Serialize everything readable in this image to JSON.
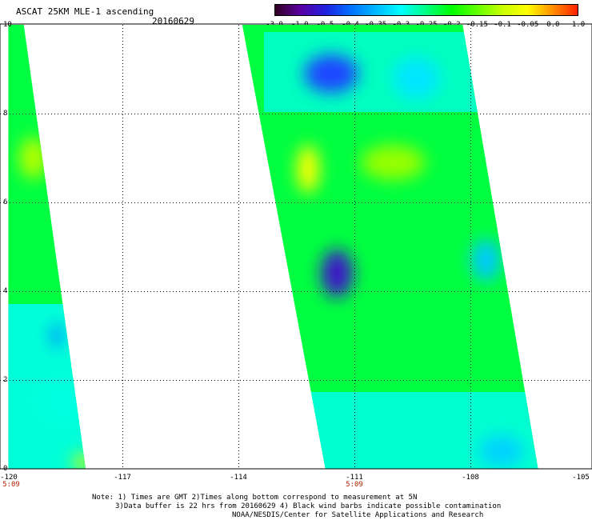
{
  "header": {
    "title": "ASCAT 25KM MLE-1 ascending",
    "date": "20160629"
  },
  "colorbar": {
    "labels": [
      "-3.0",
      "-1.0",
      "-0.5",
      "-0.4",
      "-0.35",
      "-0.3",
      "-0.25",
      "-0.2",
      "-0.15",
      "-0.1",
      "-0.05",
      "0.0",
      "1.0"
    ],
    "colors": [
      "#300020",
      "#5a00a0",
      "#2020e0",
      "#0070ff",
      "#00b8ff",
      "#00ffff",
      "#00ff80",
      "#00ff00",
      "#60ff00",
      "#c8ff00",
      "#ffff00",
      "#ff9000",
      "#ff2000"
    ]
  },
  "axes": {
    "y_ticks": [
      "10",
      "8",
      "6",
      "4",
      "2",
      "0"
    ],
    "x_ticks": [
      "-120",
      "-117",
      "-114",
      "-111",
      "-108",
      "-105"
    ],
    "times": [
      {
        "label": "5:09",
        "lon": -120
      },
      {
        "label": "5:09",
        "lon": -111
      }
    ]
  },
  "map_data": {
    "x_range": [
      -120,
      -105
    ],
    "y_range": [
      0,
      10
    ],
    "grid_lon": [
      -117,
      -114,
      -111,
      -108
    ],
    "grid_lat": [
      2,
      4,
      6,
      8
    ],
    "swaths": [
      {
        "lat0": 10,
        "lat1": 0,
        "west_lon0": -119.95,
        "west_lon1": -119.95,
        "east_lon0": -119.55,
        "east_lon1": -117.95
      },
      {
        "lat0": 10,
        "lat1": 0,
        "west_lon0": -113.9,
        "west_lon1": -111.75,
        "east_lon0": -108.2,
        "east_lon1": -106.25
      }
    ],
    "features": [
      {
        "lon": -111.6,
        "lat": 8.9,
        "color": "#1e46ff"
      },
      {
        "lon": -111.45,
        "lat": 4.4,
        "color": "#3c14c8"
      },
      {
        "lon": -112.2,
        "lat": 6.75,
        "color": "#ffff00"
      },
      {
        "lon": -109.4,
        "lat": 8.8,
        "color": "#00e6ff"
      },
      {
        "lon": -107.6,
        "lat": 4.7,
        "color": "#00c8ff"
      },
      {
        "lon": -107.2,
        "lat": 0.4,
        "color": "#00d2ff"
      },
      {
        "lon": -110.0,
        "lat": 6.9,
        "color": "#96ff00"
      },
      {
        "lon": -118.5,
        "lat": 1.5,
        "color": "#00ffe0"
      },
      {
        "lon": -118.0,
        "lat": 0.15,
        "color": "#c8ff00"
      },
      {
        "lon": -119.3,
        "lat": 7.0,
        "color": "#b4ff00"
      },
      {
        "lon": -118.7,
        "lat": 3.0,
        "color": "#0096ff"
      }
    ]
  },
  "notes": {
    "line1": "Note: 1) Times are GMT 2)Times along bottom correspond to measurement at 5N",
    "line2": "3)Data buffer is 22 hrs from 20160629 4) Black wind barbs indicate possible contamination",
    "line3": "NOAA/NESDIS/Center for Satellite Applications and Research"
  }
}
